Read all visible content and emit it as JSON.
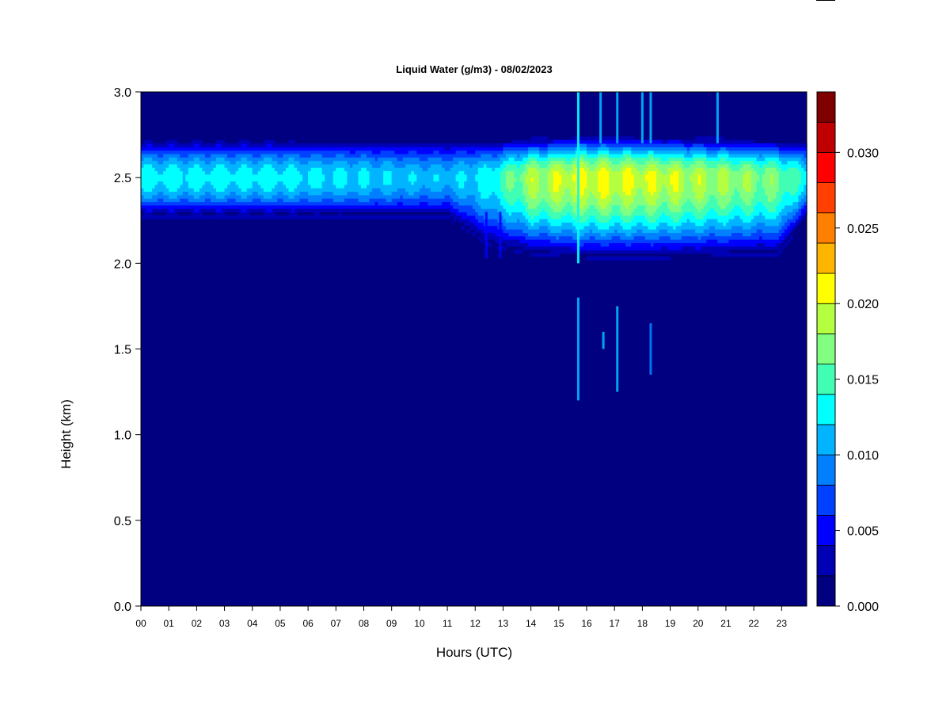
{
  "chart_data": {
    "type": "heatmap",
    "title": "Liquid Water (g/m3) - 08/02/2023",
    "xlabel": "Hours (UTC)",
    "ylabel": "Height (km)",
    "xlim": [
      0,
      23.9
    ],
    "ylim": [
      0,
      3.0
    ],
    "x_ticks": [
      "00",
      "01",
      "02",
      "03",
      "04",
      "05",
      "06",
      "07",
      "08",
      "09",
      "10",
      "11",
      "12",
      "13",
      "14",
      "15",
      "16",
      "17",
      "18",
      "19",
      "20",
      "21",
      "22",
      "23"
    ],
    "y_ticks": [
      "0.0",
      "0.5",
      "1.0",
      "1.5",
      "2.0",
      "2.5",
      "3.0"
    ],
    "colorbar": {
      "range": [
        0,
        0.034
      ],
      "ticks": [
        "0.000",
        "0.005",
        "0.010",
        "0.015",
        "0.020",
        "0.025",
        "0.030"
      ],
      "levels": [
        "#000080",
        "#0000b4",
        "#0000ff",
        "#0040ff",
        "#0080ff",
        "#00b4ff",
        "#00ffff",
        "#40ffb4",
        "#80ff80",
        "#b4ff40",
        "#ffff00",
        "#ffb400",
        "#ff8000",
        "#ff4000",
        "#ff0000",
        "#c00000",
        "#800000"
      ]
    },
    "cloud_layer": {
      "description_points": [
        {
          "hour": 0,
          "base_km": 2.27,
          "top_km": 2.73,
          "peak_g_m3": 0.014
        },
        {
          "hour": 5,
          "base_km": 2.27,
          "top_km": 2.73,
          "peak_g_m3": 0.014
        },
        {
          "hour": 11,
          "base_km": 2.27,
          "top_km": 2.72,
          "peak_g_m3": 0.012
        },
        {
          "hour": 12.5,
          "base_km": 2.1,
          "top_km": 2.72,
          "peak_g_m3": 0.014
        },
        {
          "hour": 14,
          "base_km": 2.05,
          "top_km": 2.73,
          "peak_g_m3": 0.02
        },
        {
          "hour": 16,
          "base_km": 2.03,
          "top_km": 2.75,
          "peak_g_m3": 0.022
        },
        {
          "hour": 19,
          "base_km": 2.03,
          "top_km": 2.74,
          "peak_g_m3": 0.021
        },
        {
          "hour": 22.9,
          "base_km": 2.05,
          "top_km": 2.72,
          "peak_g_m3": 0.018
        },
        {
          "hour": 23.9,
          "base_km": 2.27,
          "top_km": 2.72,
          "peak_g_m3": 0.014
        }
      ],
      "peak_height_km": 2.5
    },
    "spikes": [
      {
        "hour": 15.7,
        "from_km": 2.0,
        "to_km": 3.0,
        "value": 0.013
      },
      {
        "hour": 16.5,
        "from_km": 2.7,
        "to_km": 3.0,
        "value": 0.01
      },
      {
        "hour": 17.1,
        "from_km": 2.7,
        "to_km": 3.0,
        "value": 0.012
      },
      {
        "hour": 18.0,
        "from_km": 2.7,
        "to_km": 3.0,
        "value": 0.01
      },
      {
        "hour": 18.3,
        "from_km": 2.7,
        "to_km": 3.0,
        "value": 0.011
      },
      {
        "hour": 20.7,
        "from_km": 2.7,
        "to_km": 3.0,
        "value": 0.011
      },
      {
        "hour": 15.7,
        "from_km": 1.2,
        "to_km": 1.8,
        "value": 0.012
      },
      {
        "hour": 16.6,
        "from_km": 1.5,
        "to_km": 1.6,
        "value": 0.01
      },
      {
        "hour": 17.1,
        "from_km": 1.25,
        "to_km": 1.75,
        "value": 0.011
      },
      {
        "hour": 18.3,
        "from_km": 1.35,
        "to_km": 1.65,
        "value": 0.008
      },
      {
        "hour": 12.4,
        "from_km": 2.03,
        "to_km": 2.3,
        "value": 0.006
      },
      {
        "hour": 12.9,
        "from_km": 2.03,
        "to_km": 2.3,
        "value": 0.006
      }
    ]
  }
}
